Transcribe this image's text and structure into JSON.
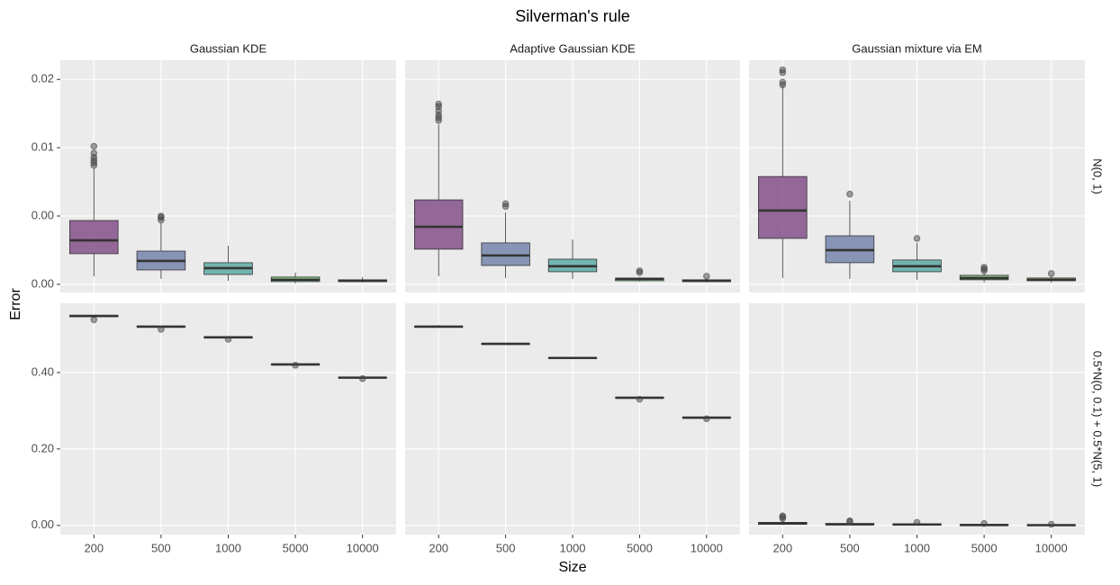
{
  "title": "Silverman's rule",
  "x_label": "Size",
  "y_label": "Error",
  "columns": [
    "Gaussian KDE",
    "Adaptive Gaussian KDE",
    "Gaussian mixture via EM"
  ],
  "rows": [
    "N(0, 1)",
    "0.5*N(0, 0.1) + 0.5*N(5, 1)"
  ],
  "chart_data": [
    {
      "type": "box",
      "categories": [
        "200",
        "500",
        "1000",
        "5000",
        "10000"
      ],
      "colors": [
        "#84508a",
        "#7685ad",
        "#5daaa5",
        "#78bd77",
        "#c5c95a"
      ],
      "ylim": [
        -0.0006,
        0.0164
      ],
      "yticks": [
        {
          "value": 0,
          "label": "0.00"
        },
        {
          "value": 0.005,
          "label": "0.00"
        },
        {
          "value": 0.01,
          "label": "0.01"
        },
        {
          "value": 0.015,
          "label": "0.02"
        }
      ],
      "boxes": [
        {
          "low": 0.00059,
          "q1": 0.00224,
          "median": 0.00322,
          "q3": 0.00467,
          "high": 0.00849,
          "outliers": [
            0.0087,
            0.0089,
            0.0091,
            0.0093,
            0.0096,
            0.0101
          ]
        },
        {
          "low": 0.0004,
          "q1": 0.00105,
          "median": 0.00171,
          "q3": 0.00243,
          "high": 0.00447,
          "outliers": [
            0.0047,
            0.0049,
            0.005
          ]
        },
        {
          "low": 0.00026,
          "q1": 0.00072,
          "median": 0.00118,
          "q3": 0.00158,
          "high": 0.00283,
          "outliers": []
        },
        {
          "low": 7e-05,
          "q1": 0.0002,
          "median": 0.00033,
          "q3": 0.00053,
          "high": 0.00086,
          "outliers": []
        },
        {
          "low": 0.00013,
          "q1": 0.0002,
          "median": 0.00026,
          "q3": 0.00033,
          "high": 0.00053,
          "outliers": []
        }
      ]
    },
    {
      "type": "box",
      "categories": [
        "200",
        "500",
        "1000",
        "5000",
        "10000"
      ],
      "colors": [
        "#84508a",
        "#7685ad",
        "#5daaa5",
        "#78bd77",
        "#c5c95a"
      ],
      "ylim": [
        -0.0006,
        0.0164
      ],
      "yticks": [
        {
          "value": 0,
          "label": "0.00"
        },
        {
          "value": 0.005,
          "label": "0.00"
        },
        {
          "value": 0.01,
          "label": "0.01"
        },
        {
          "value": 0.015,
          "label": "0.02"
        }
      ],
      "boxes": [
        {
          "low": 0.00059,
          "q1": 0.00257,
          "median": 0.00421,
          "q3": 0.00618,
          "high": 0.0117,
          "outliers": [
            0.012,
            0.0122,
            0.0124,
            0.0127,
            0.013,
            0.0132
          ]
        },
        {
          "low": 0.00046,
          "q1": 0.00138,
          "median": 0.00211,
          "q3": 0.00303,
          "high": 0.00526,
          "outliers": [
            0.0057,
            0.0059
          ]
        },
        {
          "low": 0.0004,
          "q1": 0.00092,
          "median": 0.00132,
          "q3": 0.00184,
          "high": 0.00329,
          "outliers": []
        },
        {
          "low": 0.0002,
          "q1": 0.00026,
          "median": 0.0004,
          "q3": 0.00046,
          "high": 0.00053,
          "outliers": [
            0.00086,
            0.00099
          ]
        },
        {
          "low": 0.00013,
          "q1": 0.0002,
          "median": 0.00026,
          "q3": 0.00033,
          "high": 0.0004,
          "outliers": [
            0.00059
          ]
        }
      ]
    },
    {
      "type": "box",
      "categories": [
        "200",
        "500",
        "1000",
        "5000",
        "10000"
      ],
      "colors": [
        "#84508a",
        "#7685ad",
        "#5daaa5",
        "#78bd77",
        "#c5c95a"
      ],
      "ylim": [
        -0.0006,
        0.0164
      ],
      "yticks": [
        {
          "value": 0,
          "label": "0.00"
        },
        {
          "value": 0.005,
          "label": "0.00"
        },
        {
          "value": 0.01,
          "label": "0.01"
        },
        {
          "value": 0.015,
          "label": "0.02"
        }
      ],
      "boxes": [
        {
          "low": 0.00046,
          "q1": 0.00336,
          "median": 0.0054,
          "q3": 0.00789,
          "high": 0.01454,
          "outliers": [
            0.0146,
            0.0148,
            0.0155,
            0.0157
          ]
        },
        {
          "low": 0.0004,
          "q1": 0.00158,
          "median": 0.0025,
          "q3": 0.00355,
          "high": 0.00612,
          "outliers": [
            0.0066
          ]
        },
        {
          "low": 0.00033,
          "q1": 0.00092,
          "median": 0.00132,
          "q3": 0.00178,
          "high": 0.00303,
          "outliers": [
            0.00336
          ]
        },
        {
          "low": 0.00013,
          "q1": 0.00033,
          "median": 0.00046,
          "q3": 0.00066,
          "high": 0.00079,
          "outliers": [
            0.00099,
            0.00112,
            0.00125
          ]
        },
        {
          "low": 0.00013,
          "q1": 0.00026,
          "median": 0.00033,
          "q3": 0.00046,
          "high": 0.00059,
          "outliers": [
            0.00079
          ]
        }
      ]
    },
    {
      "type": "box",
      "categories": [
        "200",
        "500",
        "1000",
        "5000",
        "10000"
      ],
      "colors": [
        "#84508a",
        "#7685ad",
        "#5daaa5",
        "#78bd77",
        "#c5c95a"
      ],
      "ylim": [
        -0.024,
        0.581
      ],
      "yticks": [
        {
          "value": 0,
          "label": "0.00"
        },
        {
          "value": 0.2,
          "label": "0.20"
        },
        {
          "value": 0.4,
          "label": "0.40"
        }
      ],
      "boxes": [
        {
          "low": 0.543,
          "q1": 0.546,
          "median": 0.548,
          "q3": 0.549,
          "high": 0.551,
          "outliers": [
            0.538
          ]
        },
        {
          "low": 0.517,
          "q1": 0.519,
          "median": 0.52,
          "q3": 0.521,
          "high": 0.522,
          "outliers": [
            0.513
          ]
        },
        {
          "low": 0.49,
          "q1": 0.491,
          "median": 0.492,
          "q3": 0.493,
          "high": 0.494,
          "outliers": [
            0.487
          ]
        },
        {
          "low": 0.42,
          "q1": 0.4205,
          "median": 0.421,
          "q3": 0.422,
          "high": 0.423,
          "outliers": [
            0.419
          ]
        },
        {
          "low": 0.385,
          "q1": 0.386,
          "median": 0.3865,
          "q3": 0.387,
          "high": 0.388,
          "outliers": [
            0.384
          ]
        }
      ]
    },
    {
      "type": "box",
      "categories": [
        "200",
        "500",
        "1000",
        "5000",
        "10000"
      ],
      "colors": [
        "#84508a",
        "#7685ad",
        "#5daaa5",
        "#78bd77",
        "#c5c95a"
      ],
      "ylim": [
        -0.024,
        0.581
      ],
      "yticks": [
        {
          "value": 0,
          "label": "0.00"
        },
        {
          "value": 0.2,
          "label": "0.20"
        },
        {
          "value": 0.4,
          "label": "0.40"
        }
      ],
      "boxes": [
        {
          "low": 0.517,
          "q1": 0.519,
          "median": 0.52,
          "q3": 0.521,
          "high": 0.524,
          "outliers": []
        },
        {
          "low": 0.473,
          "q1": 0.474,
          "median": 0.475,
          "q3": 0.476,
          "high": 0.477,
          "outliers": []
        },
        {
          "low": 0.436,
          "q1": 0.437,
          "median": 0.438,
          "q3": 0.439,
          "high": 0.44,
          "outliers": []
        },
        {
          "low": 0.332,
          "q1": 0.333,
          "median": 0.334,
          "q3": 0.335,
          "high": 0.336,
          "outliers": [
            0.33
          ]
        },
        {
          "low": 0.281,
          "q1": 0.2815,
          "median": 0.282,
          "q3": 0.283,
          "high": 0.284,
          "outliers": [
            0.279
          ]
        }
      ]
    },
    {
      "type": "box",
      "categories": [
        "200",
        "500",
        "1000",
        "5000",
        "10000"
      ],
      "colors": [
        "#84508a",
        "#7685ad",
        "#5daaa5",
        "#78bd77",
        "#c5c95a"
      ],
      "ylim": [
        -0.024,
        0.581
      ],
      "yticks": [
        {
          "value": 0,
          "label": "0.00"
        },
        {
          "value": 0.2,
          "label": "0.20"
        },
        {
          "value": 0.4,
          "label": "0.40"
        }
      ],
      "boxes": [
        {
          "low": 0.001,
          "q1": 0.003,
          "median": 0.005,
          "q3": 0.008,
          "high": 0.012,
          "outliers": [
            0.018,
            0.022,
            0.025
          ]
        },
        {
          "low": 0.001,
          "q1": 0.002,
          "median": 0.003,
          "q3": 0.005,
          "high": 0.007,
          "outliers": [
            0.01,
            0.012
          ]
        },
        {
          "low": 0.0005,
          "q1": 0.0015,
          "median": 0.0025,
          "q3": 0.004,
          "high": 0.006,
          "outliers": [
            0.008
          ]
        },
        {
          "low": 0.0002,
          "q1": 0.0008,
          "median": 0.0012,
          "q3": 0.002,
          "high": 0.003,
          "outliers": [
            0.005
          ]
        },
        {
          "low": 0.0001,
          "q1": 0.0004,
          "median": 0.0007,
          "q3": 0.0012,
          "high": 0.002,
          "outliers": [
            0.003
          ]
        }
      ]
    }
  ]
}
